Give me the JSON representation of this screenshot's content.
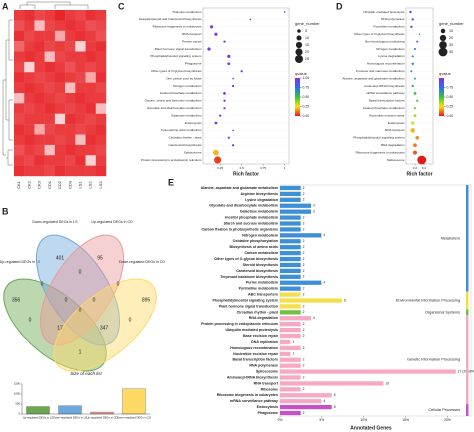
{
  "chart_data": [
    {
      "type": "heatmap",
      "panel": "A",
      "columns": [
        "CK1",
        "CK2",
        "CK3",
        "CD1",
        "CD2",
        "CD3",
        "LS1",
        "LS2",
        "LS3"
      ],
      "values": [
        [
          0.9,
          0.95,
          0.85,
          0.9,
          1,
          0.9,
          0.85,
          0.95,
          0.9
        ],
        [
          0.8,
          0.9,
          0.3,
          0.85,
          0.9,
          0.95,
          0.9,
          0.8,
          0.85
        ],
        [
          0.95,
          0.85,
          0.9,
          0.9,
          0.4,
          0.9,
          0.95,
          0.9,
          0.8
        ],
        [
          0.7,
          0.9,
          0.95,
          0.85,
          0.9,
          0.85,
          0.2,
          0.9,
          0.95
        ],
        [
          0.9,
          0.95,
          0.9,
          0.3,
          0.85,
          0.9,
          0.9,
          0.95,
          0.9
        ],
        [
          0.85,
          0.2,
          0.9,
          0.95,
          0.9,
          0.8,
          0.9,
          0.85,
          0.9
        ],
        [
          0.95,
          0.9,
          0.85,
          0.9,
          0.95,
          0.9,
          0.85,
          0.4,
          0.95
        ],
        [
          0.9,
          0.95,
          0.9,
          0.85,
          0.9,
          0.3,
          0.9,
          0.9,
          0.85
        ],
        [
          0.3,
          0.9,
          0.95,
          0.9,
          0.85,
          0.9,
          0.95,
          0.9,
          0.9
        ],
        [
          0.9,
          0.85,
          0.9,
          0.95,
          0.9,
          0.85,
          0.9,
          0.95,
          0.3
        ],
        [
          0.85,
          0.9,
          0.9,
          0.9,
          0.2,
          0.95,
          0.9,
          0.85,
          0.9
        ],
        [
          0.95,
          0.9,
          0.4,
          0.85,
          0.9,
          0.9,
          0.85,
          0.9,
          0.95
        ],
        [
          0.9,
          0.95,
          0.9,
          0.9,
          0.85,
          0.9,
          0.3,
          0.95,
          0.9
        ],
        [
          0.8,
          0.9,
          0.85,
          0.3,
          0.9,
          0.95,
          0.9,
          0.9,
          0.85
        ],
        [
          0.9,
          0.85,
          0.95,
          0.9,
          0.9,
          0.85,
          0.95,
          0.2,
          0.9
        ],
        [
          0.95,
          0.9,
          0.9,
          0.85,
          0.95,
          0.9,
          0.9,
          0.9,
          0.95
        ]
      ],
      "color": "#e8262a"
    },
    {
      "type": "venn",
      "panel": "B",
      "sets": [
        {
          "name": "Up-regulated DEGs in LS",
          "color": "#6aa84f"
        },
        {
          "name": "Down-regulated DEGs in LS",
          "color": "#6fa8dc"
        },
        {
          "name": "Up-regulated DEGs in CD",
          "color": "#ea9999"
        },
        {
          "name": "Down-regulated DEGs in CD",
          "color": "#ffd966"
        }
      ],
      "counts": [
        401,
        95,
        356,
        895,
        0,
        0,
        0,
        0,
        0,
        17,
        347,
        1,
        0,
        0,
        0
      ]
    },
    {
      "type": "bar",
      "title": "Size of each list",
      "categories": [
        "Up-regulated DEGs in LS",
        "Down-regulated DEGs in LS",
        "Up-regulated DEGs in CD",
        "Down-regulated DEGs in CD"
      ],
      "values": [
        374,
        418,
        98,
        1260
      ],
      "colors": [
        "#6aa84f",
        "#6fa8dc",
        "#ea9999",
        "#ffd966"
      ],
      "ylim": [
        0,
        1500
      ],
      "yticks": [
        0,
        500,
        1000,
        1500
      ]
    },
    {
      "type": "bubble",
      "panel": "C",
      "xlabel": "Rich factor",
      "categories": [
        "Thiamine metabolism",
        "Sesquiterpenoid and triterpenoid biosynthesis",
        "Ribosome biogenesis in eukaryotes",
        "RNA transport",
        "Protein export",
        "Plant hormone signal transduction",
        "Phosphatidylinositol signaling system",
        "Phagosome",
        "Other types of O-glycan biosynthesis",
        "One carbon pool by folate",
        "Nitrogen metabolism",
        "Inositol phosphate metabolism",
        "Glycine, serine and threonine metabolism",
        "Glycolate and dicarboxylate metabolism",
        "Galactose metabolism",
        "Endocytosis",
        "Cyanoamino acid metabolism",
        "Circadian rhythm - plant",
        "Carotenoid biosynthesis",
        "Spliceosome",
        "Protein processing in endoplasmic reticulum"
      ],
      "rich_factor": [
        1,
        0.6,
        0.15,
        0.2,
        0.3,
        0.12,
        0.35,
        0.35,
        0.5,
        0.4,
        0.4,
        0.3,
        0.3,
        0.3,
        0.25,
        0.2,
        0.4,
        0.35,
        0.4,
        0.2,
        0.22
      ],
      "gene_number": [
        1,
        1,
        4,
        4,
        2,
        4,
        4,
        3,
        2,
        1,
        2,
        3,
        2,
        2,
        2,
        3,
        1,
        2,
        2,
        13,
        20
      ],
      "qvalue": [
        1,
        1,
        0.95,
        0.95,
        0.95,
        0.95,
        0.95,
        0.95,
        0.95,
        0.95,
        0.95,
        0.95,
        0.95,
        0.95,
        0.95,
        0.95,
        0.95,
        0.95,
        0.95,
        0.2,
        0.05
      ],
      "xlim": [
        0.05,
        1.05
      ],
      "xticks": [
        0.25,
        0.5,
        0.75,
        1
      ],
      "size_title": "gene_number",
      "size_ticks": [
        5,
        10,
        15,
        20,
        25
      ],
      "color_title": "qvalue",
      "color_ticks": [
        {
          "value": 1,
          "label": "1.00"
        },
        0.75,
        {
          "value": 0.5,
          "label": "0.50"
        },
        0.25,
        {
          "value": 0,
          "label": "0.00"
        }
      ],
      "qvalue_colors": [
        "#e31a1c",
        "#f5e11b",
        "#3cc43c",
        "#2b6cf0",
        "#8a2be2"
      ]
    },
    {
      "type": "bubble",
      "panel": "D",
      "xlabel": "Rich factor",
      "categories": [
        "Ubiquitin mediated proteolysis",
        "RNA polymerase",
        "Pyrimidine metabolism",
        "Other types of O-glycan biosynthesis",
        "Non-homologous end-joining",
        "Nitrogen metabolism",
        "Lysine degradation",
        "Homologous recombination",
        "Fructose and mannose metabolism",
        "Alanine, aspartate and glutamate metabolism",
        "Aminoacyl-tRNA biosynthesis",
        "mRNA surveillance pathway",
        "Basal transcription factors",
        "Inositol phosphate metabolism",
        "Nucleotide excision repair",
        "Endocytosis",
        "RNA transport",
        "Phosphatidylinositol signaling system",
        "RNA degradation",
        "Ribosome biogenesis in eukaryotes",
        "Spliceosome"
      ],
      "rich_factor": [
        0.1,
        0.15,
        0.12,
        0.3,
        0.25,
        0.2,
        0.15,
        0.15,
        0.12,
        0.2,
        0.15,
        0.2,
        0.25,
        0.2,
        0.2,
        0.15,
        0.15,
        0.25,
        0.2,
        0.2,
        0.35
      ],
      "gene_number": [
        3,
        3,
        3,
        1,
        2,
        2,
        2,
        3,
        2,
        2,
        3,
        4,
        3,
        3,
        4,
        5,
        10,
        7,
        7,
        8,
        40
      ],
      "qvalue": [
        0.9,
        0.85,
        0.85,
        0.8,
        0.75,
        0.75,
        0.7,
        0.7,
        0.65,
        0.6,
        0.55,
        0.5,
        0.45,
        0.4,
        0.35,
        0.3,
        0.2,
        0.15,
        0.12,
        0.08,
        0
      ],
      "xlim": [
        0,
        0.6
      ],
      "xticks": [
        0.2,
        0.4
      ],
      "size_title": "gene_number",
      "size_ticks": [
        10,
        20,
        30,
        40
      ],
      "color_title": "qvalue",
      "color_ticks": [
        0.75,
        {
          "value": 0.5,
          "label": "0.50"
        },
        0.25,
        {
          "value": 0,
          "label": "0.00"
        }
      ],
      "qvalue_colors": [
        "#e31a1c",
        "#f5e11b",
        "#3cc43c",
        "#2b6cf0",
        "#8a2be2"
      ]
    },
    {
      "type": "hbar",
      "panel": "E",
      "xlabel": "Annotated Genes",
      "xlim": [
        0,
        17.6
      ],
      "xticks": [
        {
          "value": 0,
          "label": "0%"
        },
        {
          "value": 4.05,
          "label": "5%"
        },
        {
          "value": 8.1,
          "label": "10%"
        },
        {
          "value": 12.15,
          "label": "15%"
        },
        {
          "value": 16.2,
          "label": "20%"
        }
      ],
      "groups": [
        {
          "name": "Metabolism",
          "color": "#3d8fd6",
          "categories": [
            "Alanine, aspartate and glutamate metabolism",
            "Arginine biosynthesis",
            "Lysine degradation",
            "Glycolate and dicarboxylate metabolism",
            "Galactose metabolism",
            "Inositol phosphate metabolism",
            "Starch and sucrose metabolism",
            "Carbon fixation in photosynthetic organisms",
            "Nitrogen metabolism",
            "Oxidative phosphorylation",
            "Biosynthesis of amino acids",
            "Carbon metabolism",
            "Other types of O-glycan biosynthesis",
            "Steroid biosynthesis",
            "Carotenoid biosynthesis",
            "Terpenoid backbone biosynthesis",
            "Purine metabolism",
            "Pyrimidine metabolism"
          ],
          "values": [
            2,
            2,
            2,
            3,
            3,
            2,
            2,
            2,
            4,
            2,
            2,
            2,
            2,
            2,
            2,
            2,
            4,
            2
          ]
        },
        {
          "name": "Environmental Information Processing",
          "color": "#f2df4a",
          "categories": [
            "ABC transporters",
            "Phosphatidylinositol signaling system",
            "Plant hormone signal transduction"
          ],
          "values": [
            2,
            6,
            2
          ]
        },
        {
          "name": "Organismal Systems",
          "color": "#74c043",
          "categories": [
            "Circadian rhythm - plant"
          ],
          "values": [
            2
          ]
        },
        {
          "name": "Genetic Information Processing",
          "color": "#f5a9c3",
          "categories": [
            "RNA degradation",
            "Protein processing in endoplasmic reticulum",
            "Ubiquitin mediated proteolysis",
            "Base excision repair",
            "DNA replication",
            "Homologous recombination",
            "Nucleotide excision repair",
            "Basal transcription factors",
            "RNA polymerase",
            "Spliceosome",
            "Aminoacyl-tRNA biosynthesis",
            "RNA transport",
            "Ribosome",
            "Ribosome biogenesis in eukaryotes",
            "mRNA surveillance pathway"
          ],
          "values": [
            3,
            2,
            2,
            2,
            1,
            2,
            1,
            2,
            2,
            17,
            2,
            10,
            2,
            5,
            4
          ],
          "value_labels": [
            "3",
            "2",
            "2",
            "2",
            "1",
            "2",
            "1",
            "2",
            "2",
            "17 (20.99%)",
            "2",
            "10",
            "2",
            "5",
            "4"
          ]
        },
        {
          "name": "Cellular Processes",
          "color": "#c653c6",
          "categories": [
            "Endocytosis",
            "Phagosome"
          ],
          "values": [
            5,
            2
          ]
        }
      ]
    }
  ]
}
